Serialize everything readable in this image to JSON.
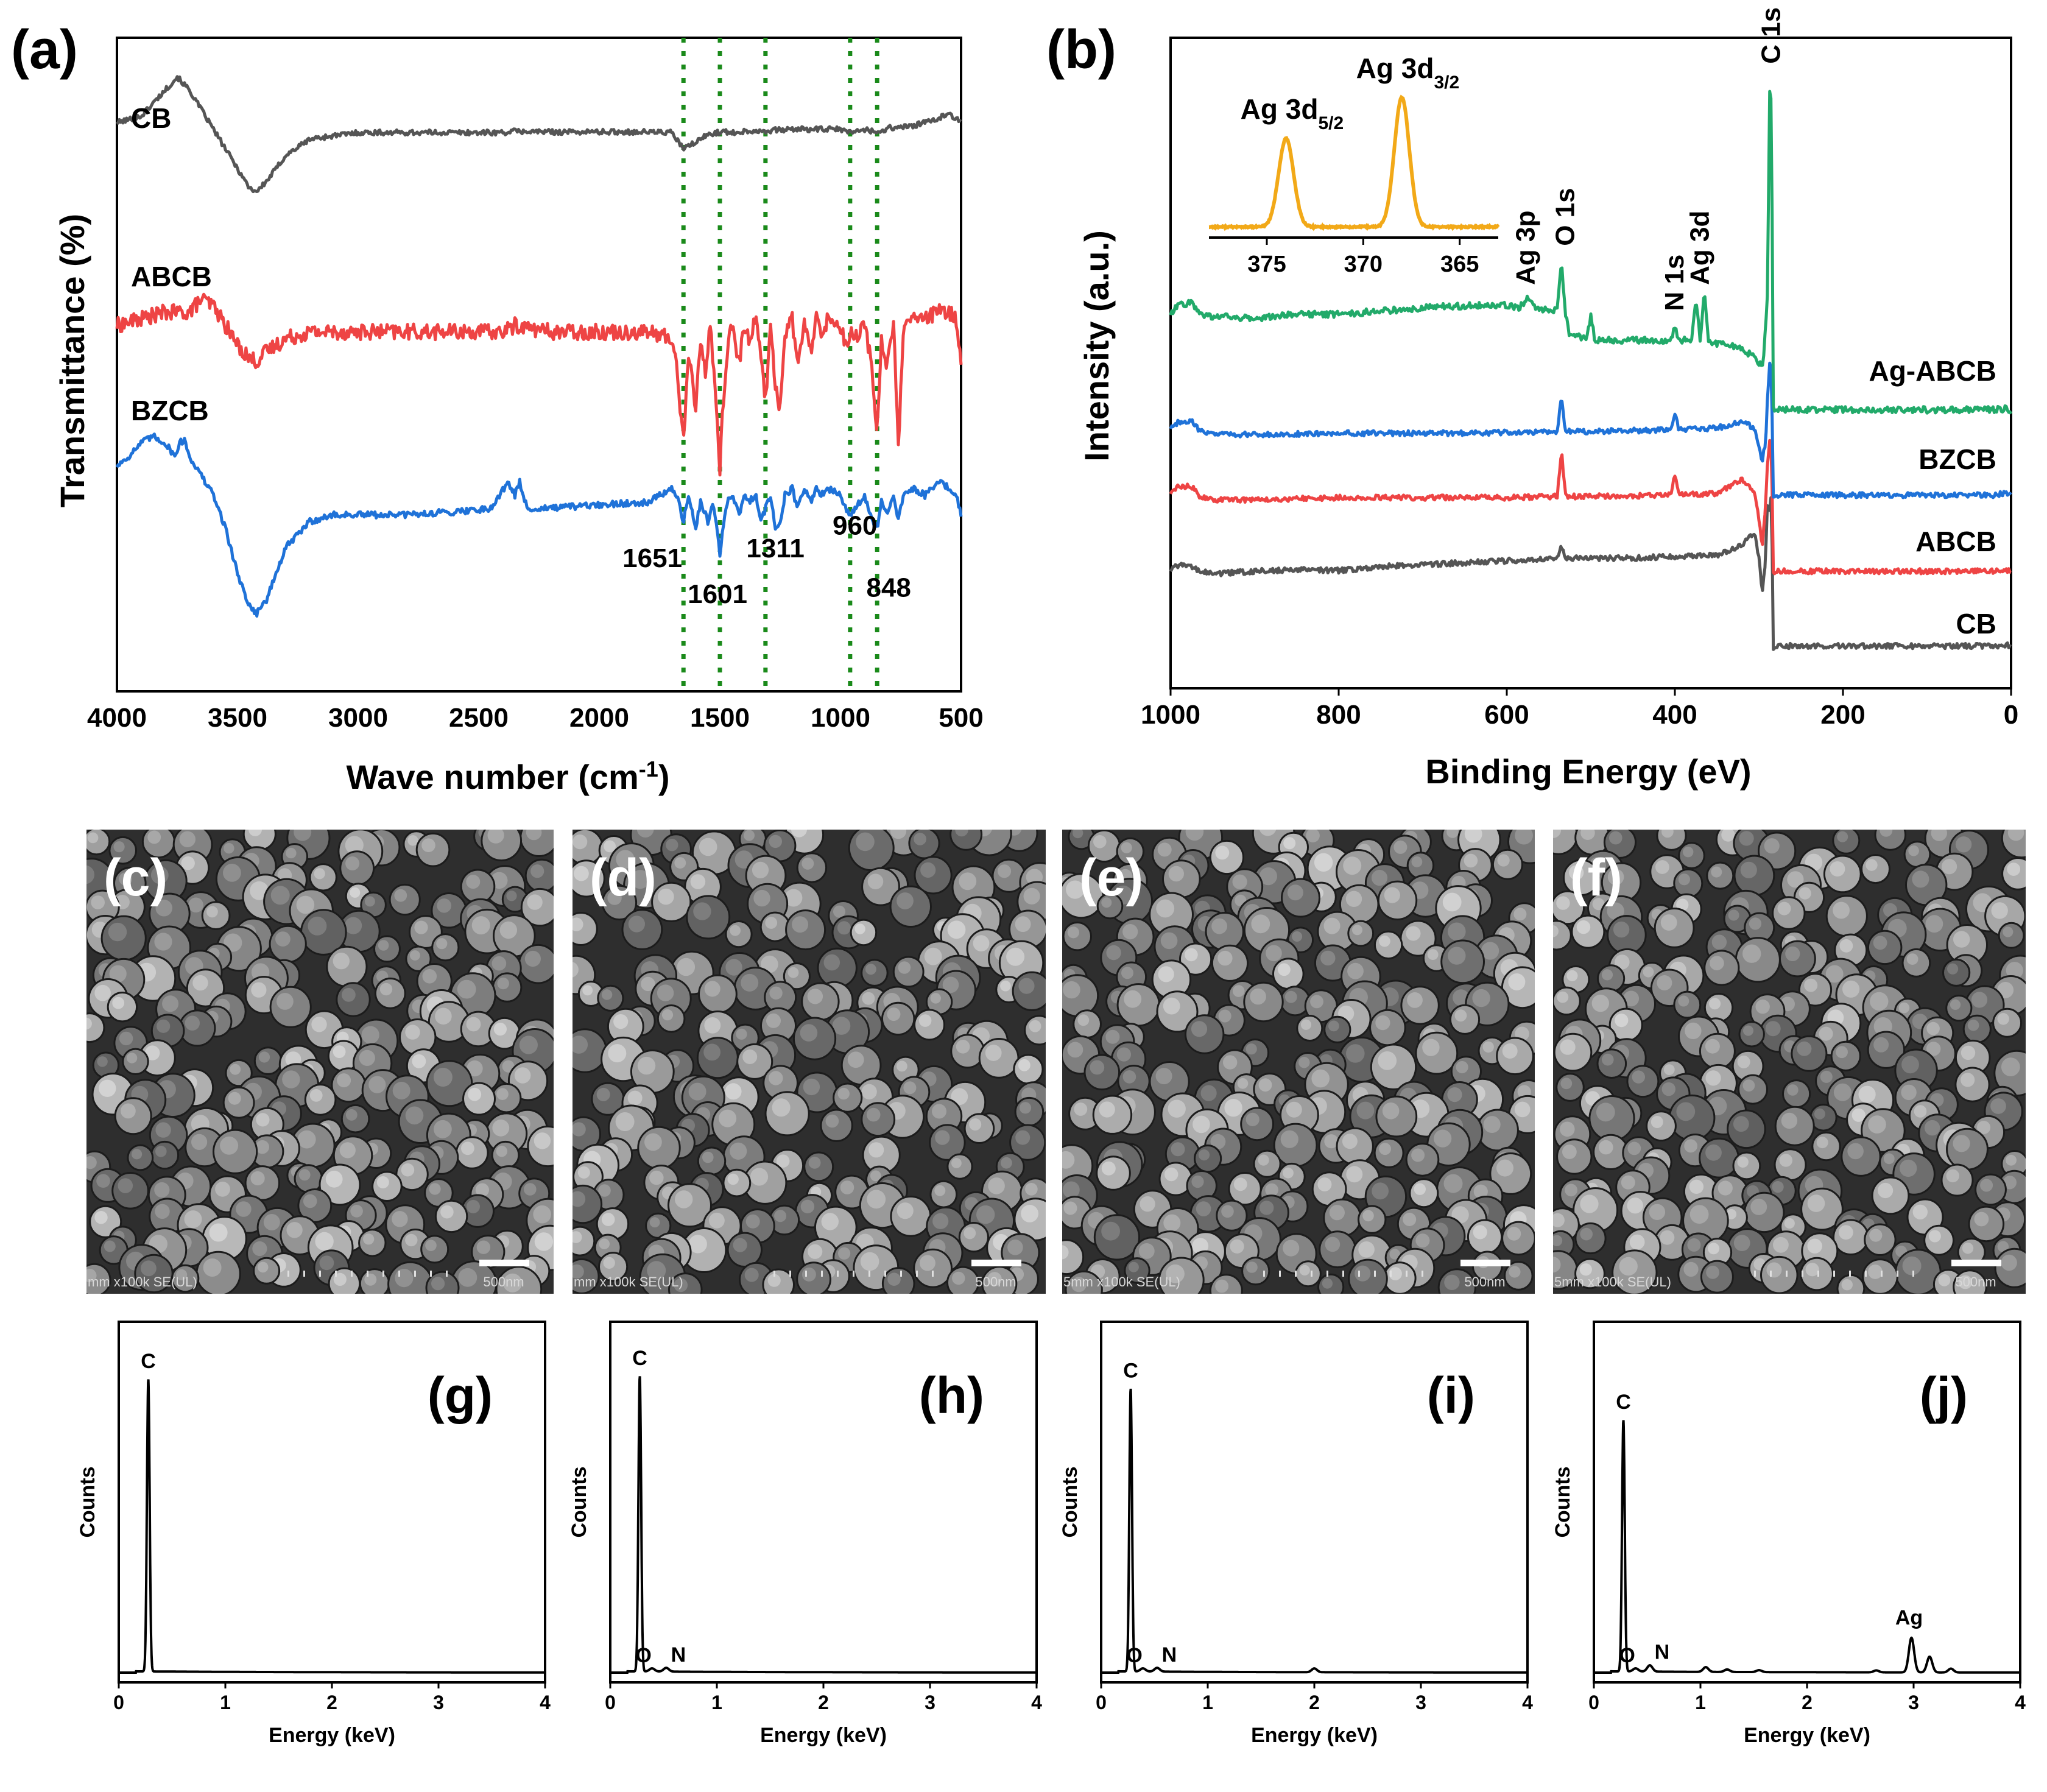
{
  "figure": {
    "panel_labels": [
      "(a)",
      "(b)",
      "(c)",
      "(d)",
      "(e)",
      "(f)",
      "(g)",
      "(h)",
      "(i)",
      "(j)"
    ]
  },
  "chart_data": [
    {
      "id": "a",
      "type": "line",
      "panel_label": "(a)",
      "title": "",
      "xlabel": "Wave number (cm",
      "xlabel_sup": "-1",
      "xlabel_close": ")",
      "ylabel": "Transmittance (%)",
      "xlim": [
        4000,
        500
      ],
      "ylim": [
        0,
        1
      ],
      "ticks_hidden": true,
      "xticks": [
        4000,
        3500,
        3000,
        2500,
        2000,
        1500,
        1000,
        500
      ],
      "grid": false,
      "legend": "inline-labels",
      "series": [
        {
          "name": "CB",
          "color": "#555555",
          "noise": 0.004,
          "x": [
            4000,
            3900,
            3800,
            3750,
            3700,
            3650,
            3600,
            3550,
            3500,
            3450,
            3420,
            3380,
            3300,
            3200,
            3100,
            3000,
            2800,
            2600,
            2400,
            2350,
            2200,
            2000,
            1800,
            1700,
            1651,
            1601,
            1550,
            1500,
            1450,
            1400,
            1300,
            1200,
            1100,
            1000,
            960,
            900,
            848,
            800,
            700,
            600,
            550,
            500
          ],
          "y": [
            0.87,
            0.88,
            0.92,
            0.94,
            0.92,
            0.89,
            0.86,
            0.83,
            0.8,
            0.77,
            0.765,
            0.78,
            0.82,
            0.845,
            0.85,
            0.855,
            0.855,
            0.855,
            0.855,
            0.857,
            0.856,
            0.856,
            0.856,
            0.855,
            0.83,
            0.84,
            0.852,
            0.856,
            0.855,
            0.857,
            0.858,
            0.86,
            0.86,
            0.86,
            0.855,
            0.86,
            0.855,
            0.862,
            0.865,
            0.875,
            0.885,
            0.87
          ]
        },
        {
          "name": "ABCB",
          "color": "#ee4444",
          "noise": 0.012,
          "x": [
            4000,
            3900,
            3800,
            3700,
            3650,
            3600,
            3550,
            3500,
            3450,
            3420,
            3380,
            3300,
            3200,
            3000,
            2800,
            2600,
            2400,
            2350,
            2200,
            2000,
            1800,
            1700,
            1680,
            1651,
            1630,
            1601,
            1580,
            1560,
            1540,
            1520,
            1510,
            1500,
            1490,
            1470,
            1450,
            1420,
            1400,
            1380,
            1350,
            1330,
            1311,
            1290,
            1270,
            1250,
            1230,
            1200,
            1180,
            1150,
            1120,
            1100,
            1080,
            1050,
            1000,
            980,
            960,
            940,
            900,
            870,
            848,
            830,
            810,
            780,
            760,
            740,
            700,
            650,
            600,
            550,
            520,
            500
          ],
          "y": [
            0.56,
            0.57,
            0.58,
            0.58,
            0.6,
            0.59,
            0.56,
            0.53,
            0.51,
            0.505,
            0.52,
            0.54,
            0.55,
            0.55,
            0.55,
            0.55,
            0.55,
            0.56,
            0.55,
            0.55,
            0.55,
            0.54,
            0.5,
            0.38,
            0.52,
            0.43,
            0.54,
            0.49,
            0.56,
            0.47,
            0.4,
            0.34,
            0.42,
            0.52,
            0.56,
            0.5,
            0.56,
            0.54,
            0.57,
            0.52,
            0.44,
            0.56,
            0.47,
            0.43,
            0.55,
            0.57,
            0.5,
            0.56,
            0.52,
            0.57,
            0.55,
            0.57,
            0.56,
            0.53,
            0.55,
            0.54,
            0.56,
            0.5,
            0.39,
            0.54,
            0.5,
            0.56,
            0.37,
            0.55,
            0.57,
            0.57,
            0.58,
            0.58,
            0.57,
            0.5
          ]
        },
        {
          "name": "BZCB",
          "color": "#1f72d8",
          "noise": 0.005,
          "x": [
            4000,
            3950,
            3900,
            3850,
            3800,
            3760,
            3740,
            3720,
            3700,
            3650,
            3600,
            3550,
            3500,
            3450,
            3420,
            3380,
            3300,
            3200,
            3100,
            3000,
            2800,
            2600,
            2450,
            2380,
            2350,
            2330,
            2300,
            2200,
            2000,
            1800,
            1700,
            1680,
            1651,
            1630,
            1601,
            1580,
            1550,
            1530,
            1510,
            1500,
            1490,
            1470,
            1450,
            1420,
            1400,
            1380,
            1350,
            1330,
            1311,
            1290,
            1270,
            1250,
            1230,
            1200,
            1180,
            1150,
            1120,
            1100,
            1080,
            1050,
            1000,
            980,
            960,
            940,
            900,
            870,
            848,
            830,
            810,
            780,
            760,
            740,
            700,
            650,
            600,
            580,
            550,
            520,
            500
          ],
          "y": [
            0.345,
            0.36,
            0.38,
            0.39,
            0.38,
            0.36,
            0.38,
            0.385,
            0.36,
            0.33,
            0.3,
            0.25,
            0.18,
            0.13,
            0.12,
            0.14,
            0.22,
            0.26,
            0.27,
            0.27,
            0.27,
            0.275,
            0.28,
            0.32,
            0.3,
            0.32,
            0.28,
            0.28,
            0.285,
            0.29,
            0.31,
            0.3,
            0.26,
            0.3,
            0.25,
            0.29,
            0.26,
            0.29,
            0.24,
            0.21,
            0.24,
            0.29,
            0.3,
            0.27,
            0.3,
            0.29,
            0.3,
            0.26,
            0.28,
            0.3,
            0.25,
            0.26,
            0.3,
            0.31,
            0.28,
            0.31,
            0.29,
            0.31,
            0.3,
            0.31,
            0.3,
            0.28,
            0.27,
            0.28,
            0.3,
            0.26,
            0.25,
            0.29,
            0.27,
            0.3,
            0.26,
            0.3,
            0.31,
            0.3,
            0.32,
            0.32,
            0.31,
            0.3,
            0.27
          ]
        }
      ],
      "vlines": {
        "color": "#1a8a1a",
        "x": [
          1651,
          1500,
          1311,
          960,
          848
        ]
      },
      "annotations": [
        {
          "text": "1651",
          "x": 1780,
          "y": 0.19
        },
        {
          "text": "1601",
          "x": 1510,
          "y": 0.135
        },
        {
          "text": "1311",
          "x": 1270,
          "y": 0.205
        },
        {
          "text": "960",
          "x": 940,
          "y": 0.24
        },
        {
          "text": "848",
          "x": 800,
          "y": 0.145
        }
      ]
    },
    {
      "id": "b",
      "type": "line",
      "panel_label": "(b)",
      "title": "",
      "xlabel": "Binding Energy (eV)",
      "ylabel": "Intensity (a.u.)",
      "xlim": [
        1000,
        0
      ],
      "ylim": [
        0,
        1
      ],
      "xticks": [
        1000,
        800,
        600,
        400,
        200,
        0
      ],
      "grid": false,
      "legend": "inline-labels-right",
      "series": [
        {
          "name": "CB",
          "color": "#555555",
          "noise": 0.004,
          "x": [
            1000,
            990,
            975,
            965,
            950,
            900,
            850,
            800,
            750,
            700,
            650,
            600,
            540,
            535,
            530,
            525,
            500,
            450,
            400,
            350,
            320,
            305,
            300,
            296,
            292,
            290,
            287,
            285,
            283,
            280,
            270,
            200,
            100,
            20,
            5,
            0
          ],
          "y": [
            0.181,
            0.19,
            0.186,
            0.18,
            0.176,
            0.18,
            0.182,
            0.181,
            0.187,
            0.19,
            0.193,
            0.196,
            0.2,
            0.22,
            0.2,
            0.2,
            0.2,
            0.2,
            0.203,
            0.205,
            0.22,
            0.24,
            0.2,
            0.15,
            0.2,
            0.28,
            0.27,
            0.3,
            0.06,
            0.065,
            0.065,
            0.065,
            0.065,
            0.065,
            0.067,
            0.062
          ]
        },
        {
          "name": "ABCB",
          "color": "#ee4444",
          "noise": 0.004,
          "x": [
            1000,
            990,
            975,
            965,
            950,
            900,
            800,
            700,
            600,
            540,
            535,
            530,
            525,
            500,
            405,
            400,
            395,
            350,
            320,
            305,
            300,
            296,
            292,
            290,
            287,
            285,
            283,
            280,
            270,
            200,
            100,
            20,
            5,
            0
          ],
          "y": [
            0.3,
            0.31,
            0.31,
            0.295,
            0.29,
            0.29,
            0.293,
            0.293,
            0.293,
            0.295,
            0.365,
            0.295,
            0.295,
            0.295,
            0.297,
            0.33,
            0.297,
            0.3,
            0.32,
            0.3,
            0.26,
            0.22,
            0.28,
            0.34,
            0.38,
            0.37,
            0.175,
            0.18,
            0.18,
            0.18,
            0.18,
            0.18,
            0.182,
            0.18
          ]
        },
        {
          "name": "BZCB",
          "color": "#1f72d8",
          "noise": 0.004,
          "x": [
            1000,
            990,
            975,
            965,
            950,
            900,
            800,
            700,
            600,
            540,
            535,
            530,
            525,
            500,
            405,
            400,
            395,
            350,
            320,
            305,
            300,
            296,
            292,
            290,
            287,
            285,
            283,
            280,
            270,
            200,
            100,
            20,
            5,
            0
          ],
          "y": [
            0.4,
            0.41,
            0.41,
            0.395,
            0.39,
            0.39,
            0.392,
            0.392,
            0.393,
            0.395,
            0.445,
            0.395,
            0.395,
            0.395,
            0.397,
            0.425,
            0.397,
            0.4,
            0.41,
            0.4,
            0.37,
            0.35,
            0.38,
            0.44,
            0.5,
            0.49,
            0.295,
            0.297,
            0.297,
            0.297,
            0.297,
            0.297,
            0.3,
            0.296
          ]
        },
        {
          "name": "Ag-ABCB",
          "color": "#22aa6a",
          "noise": 0.005,
          "x": [
            1000,
            990,
            975,
            965,
            950,
            900,
            850,
            800,
            750,
            700,
            650,
            620,
            600,
            585,
            575,
            565,
            540,
            535,
            530,
            525,
            505,
            500,
            495,
            450,
            405,
            400,
            395,
            380,
            375,
            370,
            365,
            360,
            340,
            320,
            305,
            300,
            295,
            290,
            287,
            285,
            283,
            280,
            270,
            200,
            100,
            20,
            5,
            0
          ],
          "y": [
            0.575,
            0.59,
            0.592,
            0.575,
            0.572,
            0.568,
            0.575,
            0.575,
            0.58,
            0.585,
            0.588,
            0.59,
            0.588,
            0.585,
            0.6,
            0.585,
            0.58,
            0.655,
            0.575,
            0.54,
            0.54,
            0.572,
            0.535,
            0.535,
            0.535,
            0.558,
            0.535,
            0.535,
            0.6,
            0.535,
            0.608,
            0.53,
            0.53,
            0.52,
            0.51,
            0.5,
            0.5,
            0.6,
            0.93,
            0.9,
            0.43,
            0.428,
            0.428,
            0.428,
            0.428,
            0.428,
            0.43,
            0.425
          ]
        }
      ],
      "annotations": [
        {
          "text": "Ag 3p",
          "x": 577,
          "y": 0.62,
          "rotate": true
        },
        {
          "text": "O 1s",
          "x": 530,
          "y": 0.68,
          "rotate": true
        },
        {
          "text": "N 1s",
          "x": 400,
          "y": 0.58,
          "rotate": true
        },
        {
          "text": "Ag 3d",
          "x": 370,
          "y": 0.62,
          "rotate": true
        },
        {
          "text": "C 1s",
          "x": 285,
          "y": 0.96,
          "rotate": true
        }
      ],
      "inset": {
        "type": "line",
        "color": "#f2a918",
        "xlim": [
          378,
          363
        ],
        "xticks": [
          375,
          370,
          365
        ],
        "peaks": [
          {
            "name": "Ag 3d",
            "sub": "5/2",
            "x": 374,
            "height": 0.58
          },
          {
            "name": "Ag 3d",
            "sub": "3/2",
            "x": 368,
            "height": 0.85
          }
        ]
      }
    },
    {
      "id": "g",
      "type": "line",
      "panel_label": "(g)",
      "xlabel": "Energy (keV)",
      "ylabel": "Counts",
      "xlim": [
        0,
        4
      ],
      "ylim": [
        0,
        1
      ],
      "xticks": [
        0,
        1,
        2,
        3,
        4
      ],
      "grid": false,
      "color": "#000000",
      "peaks": [
        {
          "label": "C",
          "x": 0.277,
          "height": 0.93
        }
      ]
    },
    {
      "id": "h",
      "type": "line",
      "panel_label": "(h)",
      "xlabel": "Energy (keV)",
      "ylabel": "Counts",
      "xlim": [
        0,
        4
      ],
      "ylim": [
        0,
        1
      ],
      "xticks": [
        0,
        1,
        2,
        3,
        4
      ],
      "grid": false,
      "color": "#000000",
      "peaks": [
        {
          "label": "C",
          "x": 0.277,
          "height": 0.94
        },
        {
          "label": "O",
          "x": 0.392,
          "height": 0.01
        },
        {
          "label": "N",
          "x": 0.525,
          "height": 0.012
        }
      ]
    },
    {
      "id": "i",
      "type": "line",
      "panel_label": "(i)",
      "xlabel": "Energy (keV)",
      "ylabel": "Counts",
      "xlim": [
        0,
        4
      ],
      "ylim": [
        0,
        1
      ],
      "xticks": [
        0,
        1,
        2,
        3,
        4
      ],
      "grid": false,
      "color": "#000000",
      "peaks": [
        {
          "label": "C",
          "x": 0.277,
          "height": 0.9
        },
        {
          "label": "O",
          "x": 0.392,
          "height": 0.01
        },
        {
          "label": "N",
          "x": 0.525,
          "height": 0.012
        },
        {
          "label": "",
          "x": 2.0,
          "height": 0.012
        }
      ]
    },
    {
      "id": "j",
      "type": "line",
      "panel_label": "(j)",
      "xlabel": "Energy (keV)",
      "ylabel": "Counts",
      "xlim": [
        0,
        4
      ],
      "ylim": [
        0,
        1
      ],
      "xticks": [
        0,
        1,
        2,
        3,
        4
      ],
      "grid": false,
      "color": "#000000",
      "peaks": [
        {
          "label": "C",
          "x": 0.277,
          "height": 0.8
        },
        {
          "label": "O",
          "x": 0.392,
          "height": 0.01
        },
        {
          "label": "N",
          "x": 0.525,
          "height": 0.02
        },
        {
          "label": "",
          "x": 1.05,
          "height": 0.015
        },
        {
          "label": "",
          "x": 1.25,
          "height": 0.008
        },
        {
          "label": "",
          "x": 1.55,
          "height": 0.006
        },
        {
          "label": "",
          "x": 2.65,
          "height": 0.006
        },
        {
          "label": "Ag",
          "x": 2.98,
          "height": 0.11
        },
        {
          "label": "",
          "x": 3.15,
          "height": 0.05
        },
        {
          "label": "",
          "x": 3.35,
          "height": 0.012
        }
      ]
    }
  ],
  "sem_images": [
    {
      "panel_label": "(c)",
      "info": "mm x100k SE(UL)",
      "scale": "500nm",
      "seed": 11
    },
    {
      "panel_label": "(d)",
      "info": "mm x100k SE(UL)",
      "scale": "500nm",
      "seed": 23
    },
    {
      "panel_label": "(e)",
      "info": "5mm x100k SE(UL)",
      "scale": "500nm",
      "seed": 37
    },
    {
      "panel_label": "(f)",
      "info": "5mm x100k SE(UL)",
      "scale": "500nm",
      "seed": 53
    }
  ]
}
